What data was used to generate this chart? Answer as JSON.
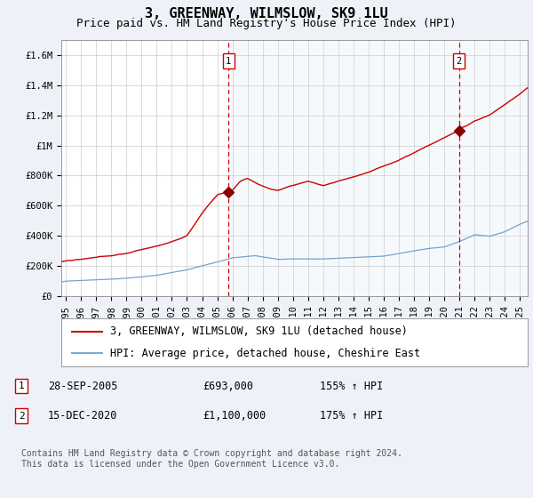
{
  "title": "3, GREENWAY, WILMSLOW, SK9 1LU",
  "subtitle": "Price paid vs. HM Land Registry's House Price Index (HPI)",
  "ylim": [
    0,
    1700000
  ],
  "yticks": [
    0,
    200000,
    400000,
    600000,
    800000,
    1000000,
    1200000,
    1400000,
    1600000
  ],
  "ytick_labels": [
    "£0",
    "£200K",
    "£400K",
    "£600K",
    "£800K",
    "£1M",
    "£1.2M",
    "£1.4M",
    "£1.6M"
  ],
  "xlim_start": 1994.7,
  "xlim_end": 2025.5,
  "xtick_years": [
    1995,
    1996,
    1997,
    1998,
    1999,
    2000,
    2001,
    2002,
    2003,
    2004,
    2005,
    2006,
    2007,
    2008,
    2009,
    2010,
    2011,
    2012,
    2013,
    2014,
    2015,
    2016,
    2017,
    2018,
    2019,
    2020,
    2021,
    2022,
    2023,
    2024,
    2025
  ],
  "marker1_x": 2005.747,
  "marker1_y": 693000,
  "marker1_label": "1",
  "marker1_date": "28-SEP-2005",
  "marker1_price": "£693,000",
  "marker1_hpi": "155% ↑ HPI",
  "marker2_x": 2020.958,
  "marker2_y": 1100000,
  "marker2_label": "2",
  "marker2_date": "15-DEC-2020",
  "marker2_price": "£1,100,000",
  "marker2_hpi": "175% ↑ HPI",
  "red_line_color": "#cc0000",
  "blue_line_color": "#6699cc",
  "dashed_line_color": "#cc0000",
  "background_color": "#eef2f8",
  "plot_bg_color": "#ffffff",
  "shade_color": "#dde8f5",
  "grid_color": "#cccccc",
  "legend_label_red": "3, GREENWAY, WILMSLOW, SK9 1LU (detached house)",
  "legend_label_blue": "HPI: Average price, detached house, Cheshire East",
  "footer": "Contains HM Land Registry data © Crown copyright and database right 2024.\nThis data is licensed under the Open Government Licence v3.0.",
  "title_fontsize": 11,
  "subtitle_fontsize": 9,
  "axis_fontsize": 7.5,
  "legend_fontsize": 8.5,
  "footer_fontsize": 7
}
